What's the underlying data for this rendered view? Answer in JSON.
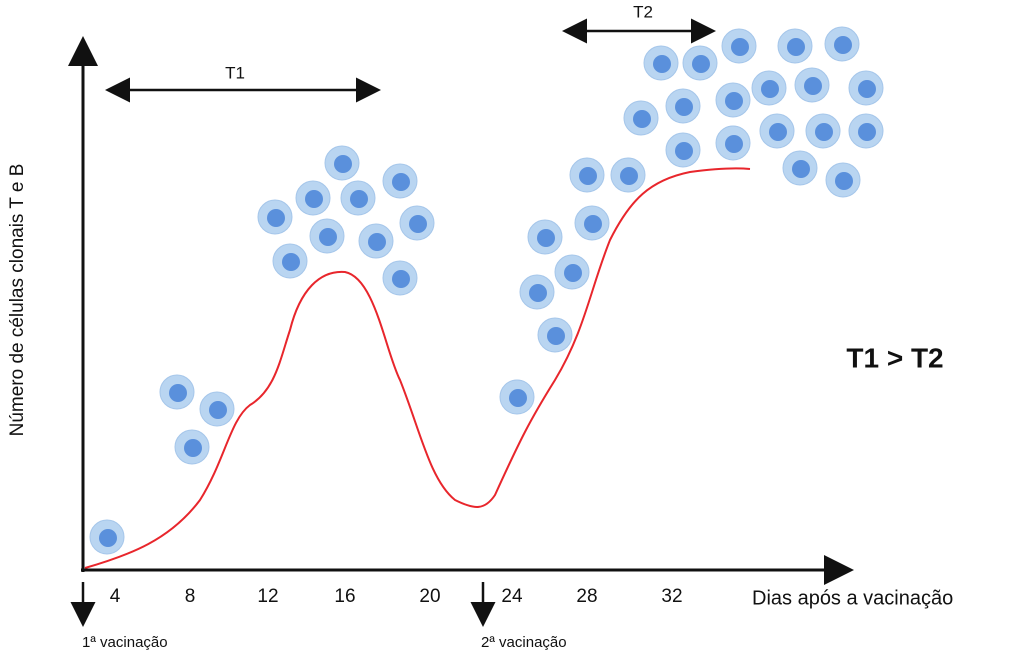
{
  "y_axis_label": "Número de células clonais T e B",
  "x_axis_label": "Dias após a vacinação",
  "x_ticks": [
    "4",
    "8",
    "12",
    "16",
    "20",
    "24",
    "28",
    "32"
  ],
  "vaccinations": [
    "1ª vacinação",
    "2ª vacinação"
  ],
  "intervals": [
    "T1",
    "T2"
  ],
  "comparison": "T1 > T2"
}
